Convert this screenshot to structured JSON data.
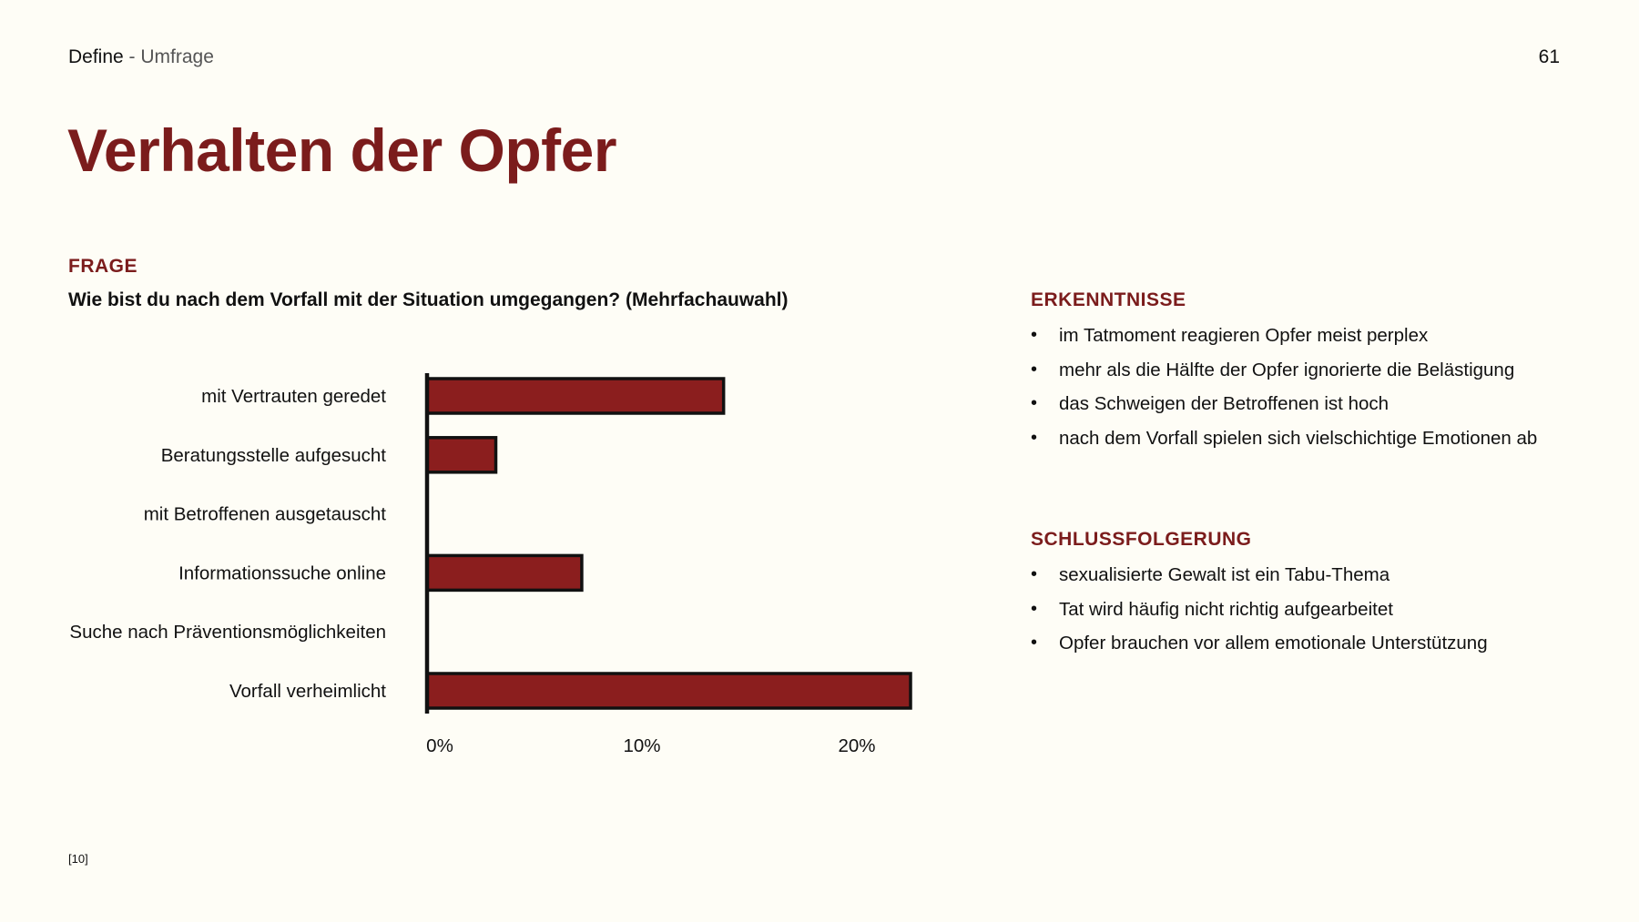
{
  "header": {
    "section": "Define",
    "separator": " - ",
    "subsection": "Umfrage",
    "page_number": "61"
  },
  "title": "Verhalten der Opfer",
  "question_block": {
    "label": "FRAGE",
    "text": "Wie bist du nach dem Vorfall mit der Situation umgegangen? (Mehrfachauwahl)"
  },
  "insights": {
    "label": "ERKENNTNISSE",
    "items": [
      "im Tatmoment reagieren Opfer meist perplex",
      "mehr als die Hälfte der Opfer ignorierte die Belästigung",
      "das Schweigen der Betroffenen ist hoch",
      "nach dem Vorfall spielen sich vielschichtige Emotionen ab"
    ]
  },
  "conclusion": {
    "label": "SCHLUSSFOLGERUNG",
    "items": [
      "sexualisierte Gewalt ist ein Tabu-Thema",
      "Tat wird häufig nicht richtig aufgearbeitet",
      "Opfer brauchen vor allem emotionale Unterstützung"
    ]
  },
  "footnote": "[10]",
  "colors": {
    "accent": "#7b1c1c",
    "bar_fill": "#8b1e1e",
    "bar_outline": "#111111",
    "background": "#fefdf6"
  },
  "chart_data": {
    "type": "bar",
    "orientation": "horizontal",
    "categories": [
      "mit Vertrauten geredet",
      "Beratungsstelle aufgesucht",
      "mit Betroffenen ausgetauscht",
      "Informationssuche online",
      "Suche nach Präventionsmöglichkeiten",
      "Vorfall verheimlicht"
    ],
    "values": [
      13.8,
      3.2,
      0,
      7.2,
      0,
      22.5
    ],
    "unit": "%",
    "xlim": [
      0,
      22.5
    ],
    "xticks": [
      0,
      10,
      20
    ],
    "xtick_labels": [
      "0%",
      "10%",
      "20%"
    ],
    "grid": false,
    "legend": false
  }
}
